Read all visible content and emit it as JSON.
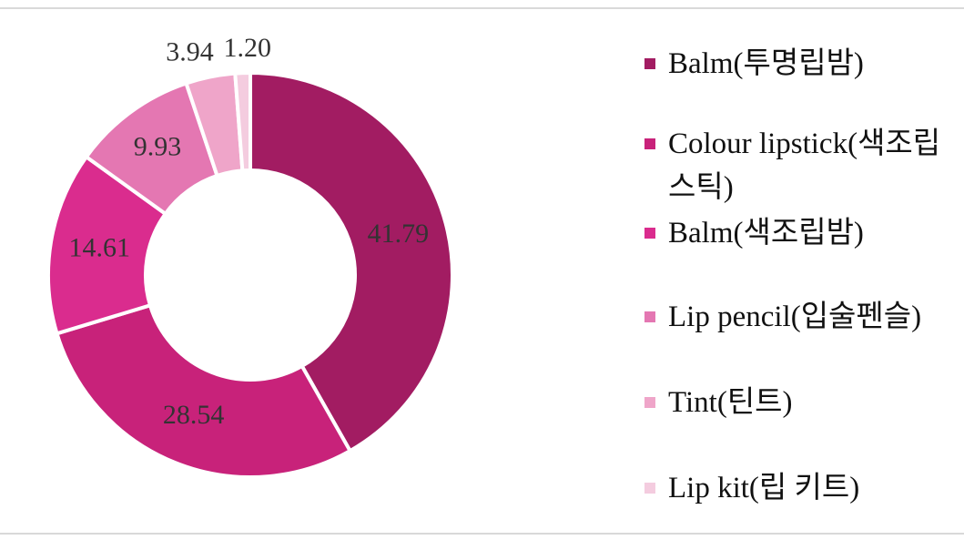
{
  "chart_data": {
    "type": "pie",
    "title": "",
    "categories": [
      "Balm(투명립밤)",
      "Colour lipstick(색조립스틱)",
      "Balm(색조립밤)",
      "Lip pencil(입술펜슬)",
      "Tint(틴트)",
      "Lip kit(립 키트)"
    ],
    "values": [
      41.79,
      28.54,
      14.61,
      9.93,
      3.94,
      1.2
    ],
    "value_labels": [
      "41.79",
      "28.54",
      "14.61",
      "9.93",
      "3.94",
      "1.20"
    ],
    "colors": [
      "#A21C62",
      "#C8227A",
      "#DA2C8E",
      "#E477B2",
      "#EFA5C9",
      "#F4CCDF"
    ],
    "donut": true,
    "legend_position": "right"
  },
  "legend": {
    "items": [
      {
        "label": "Balm(투명립밤)"
      },
      {
        "label": "Colour lipstick(색조립스틱)"
      },
      {
        "label": "Balm(색조립밤)"
      },
      {
        "label": "Lip pencil(입술펜슬)"
      },
      {
        "label": "Tint(틴트)"
      },
      {
        "label": "Lip kit(립 키트)"
      }
    ]
  }
}
